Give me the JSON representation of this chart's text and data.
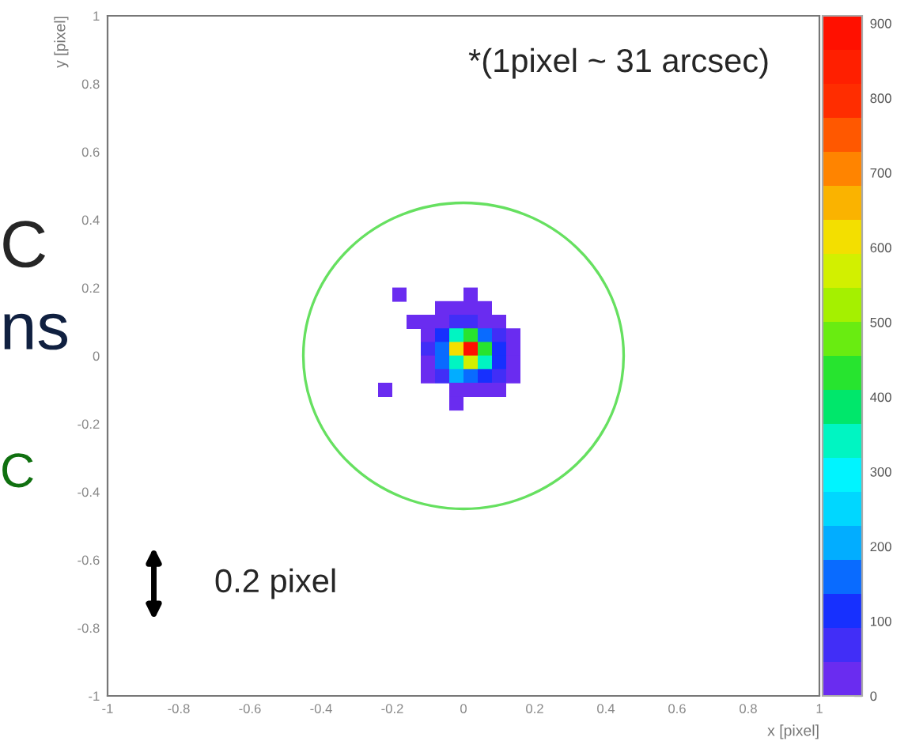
{
  "chart_data": {
    "type": "scatter",
    "annotations": [
      "*(1pixel ~ 31 arcsec)",
      "0.2 pixel",
      "C",
      "ns",
      "C"
    ],
    "xlabel": "x [pixel]",
    "ylabel": "y [pixel]",
    "marker": "square",
    "x": [
      -0.18,
      0.02,
      -0.06,
      -0.02,
      0.02,
      0.06,
      -0.14,
      -0.1,
      -0.06,
      -0.02,
      0.02,
      0.06,
      0.1,
      -0.1,
      -0.06,
      -0.02,
      0.02,
      0.06,
      0.1,
      0.14,
      -0.1,
      -0.06,
      -0.02,
      0.02,
      0.06,
      0.1,
      0.14,
      -0.1,
      -0.06,
      -0.02,
      0.02,
      0.06,
      0.1,
      0.14,
      -0.1,
      -0.06,
      -0.02,
      0.02,
      0.06,
      0.1,
      0.14,
      -0.22,
      -0.02,
      0.02,
      0.06,
      0.1,
      -0.02
    ],
    "values": [
      0.18,
      0.18,
      0.14,
      0.14,
      0.14,
      0.14,
      0.1,
      0.1,
      0.1,
      0.1,
      0.1,
      0.1,
      0.1,
      0.06,
      0.06,
      0.06,
      0.06,
      0.06,
      0.06,
      0.06,
      0.02,
      0.02,
      0.02,
      0.02,
      0.02,
      0.02,
      0.02,
      -0.02,
      -0.02,
      -0.02,
      -0.02,
      -0.02,
      -0.02,
      -0.02,
      -0.06,
      -0.06,
      -0.06,
      -0.06,
      -0.06,
      -0.06,
      -0.06,
      -0.1,
      -0.1,
      -0.1,
      -0.1,
      -0.1,
      -0.14
    ],
    "cvalues": [
      30,
      30,
      20,
      20,
      30,
      20,
      20,
      30,
      40,
      60,
      60,
      40,
      20,
      30,
      130,
      320,
      420,
      170,
      60,
      30,
      50,
      150,
      600,
      900,
      450,
      120,
      40,
      40,
      160,
      350,
      550,
      330,
      120,
      30,
      20,
      80,
      200,
      180,
      130,
      60,
      20,
      30,
      40,
      40,
      30,
      20,
      20
    ],
    "xlim": [
      -1,
      1
    ],
    "ylim": [
      -1,
      1
    ],
    "xticks": [
      -1,
      -0.8,
      -0.6,
      -0.4,
      -0.2,
      0,
      0.2,
      0.4,
      0.6,
      0.8,
      1
    ],
    "yticks": [
      -1,
      -0.8,
      -0.6,
      -0.4,
      -0.2,
      0,
      0.2,
      0.4,
      0.6,
      0.8,
      1
    ],
    "clim": [
      0,
      910
    ],
    "cticks": [
      0,
      100,
      200,
      300,
      400,
      500,
      600,
      700,
      800,
      900
    ]
  }
}
